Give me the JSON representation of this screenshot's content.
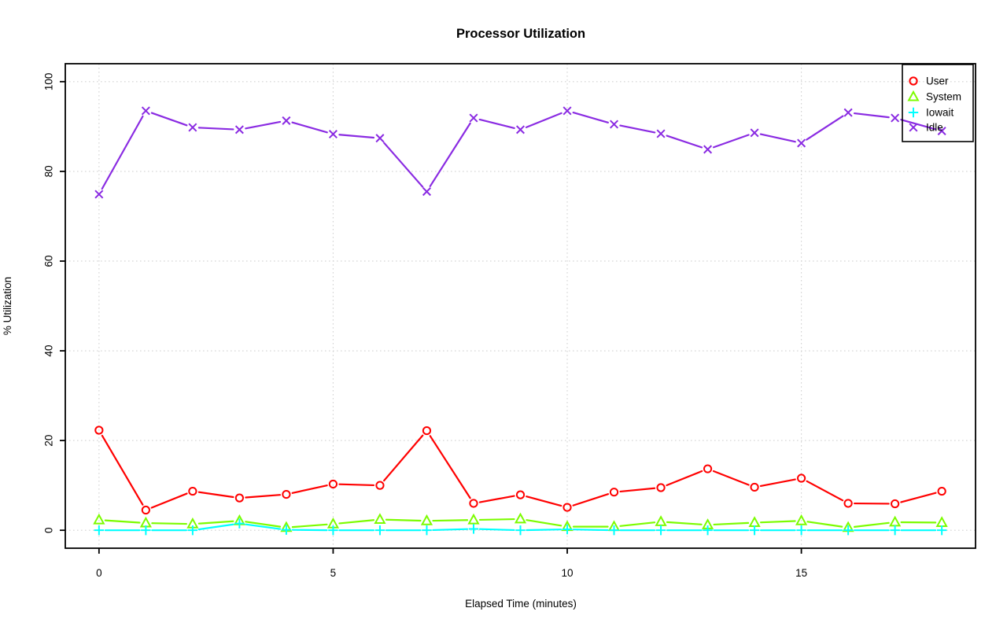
{
  "chart_data": {
    "type": "line",
    "title": "Processor Utilization",
    "xlabel": "Elapsed Time (minutes)",
    "ylabel": "% Utilization",
    "x": [
      0,
      1,
      2,
      3,
      4,
      5,
      6,
      7,
      8,
      9,
      10,
      11,
      12,
      13,
      14,
      15,
      16,
      17,
      18
    ],
    "xlim": [
      0,
      18
    ],
    "ylim": [
      0,
      100
    ],
    "xticks": [
      0,
      5,
      10,
      15
    ],
    "yticks": [
      0,
      20,
      40,
      60,
      80,
      100
    ],
    "grid": true,
    "grid_style": "dotted",
    "grid_color": "#d2d2d2",
    "legend_position": "top-right",
    "series": [
      {
        "name": "User",
        "color": "#ff0000",
        "marker": "circle",
        "values": [
          22.3,
          4.5,
          8.7,
          7.2,
          8.0,
          10.3,
          10.0,
          22.2,
          6.0,
          7.9,
          5.1,
          8.5,
          9.5,
          13.7,
          9.6,
          11.6,
          6.0,
          5.9,
          8.7
        ]
      },
      {
        "name": "System",
        "color": "#7cfc00",
        "marker": "triangle",
        "values": [
          2.3,
          1.6,
          1.4,
          2.1,
          0.6,
          1.4,
          2.4,
          2.1,
          2.3,
          2.5,
          0.8,
          0.8,
          1.9,
          1.2,
          1.7,
          2.1,
          0.6,
          1.8,
          1.7
        ]
      },
      {
        "name": "Iowait",
        "color": "#00ffff",
        "marker": "plus",
        "values": [
          0,
          0,
          0,
          1.5,
          0.1,
          0,
          0,
          0,
          0.3,
          0,
          0.2,
          0,
          0,
          0,
          0,
          0,
          0,
          0,
          0
        ]
      },
      {
        "name": "Idle",
        "color": "#8a2be2",
        "marker": "x",
        "values": [
          74.9,
          93.5,
          89.8,
          89.3,
          91.3,
          88.3,
          87.4,
          75.5,
          91.9,
          89.3,
          93.5,
          90.5,
          88.4,
          84.9,
          88.6,
          86.3,
          93.1,
          91.9,
          89.0
        ]
      }
    ]
  }
}
